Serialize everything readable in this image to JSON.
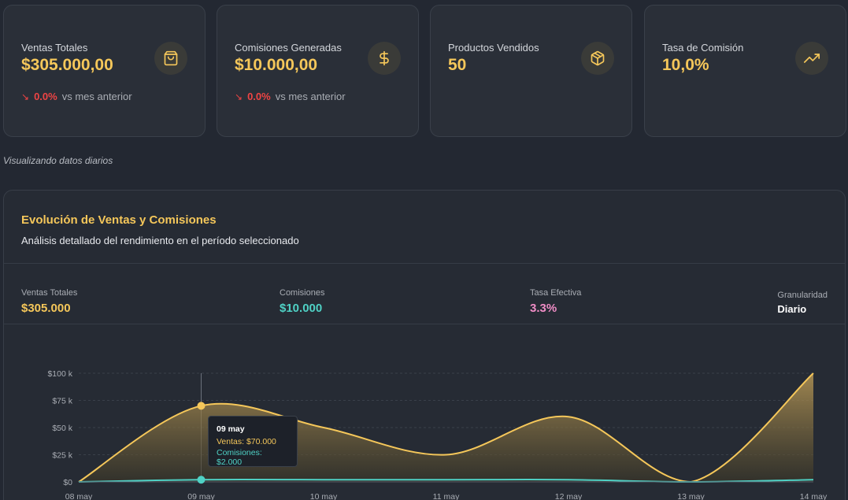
{
  "cards": [
    {
      "label": "Ventas Totales",
      "value": "$305.000,00",
      "icon": "shopping-bag-icon",
      "change": "0.0%",
      "change_text": "vs mes anterior"
    },
    {
      "label": "Comisiones Generadas",
      "value": "$10.000,00",
      "icon": "dollar-icon",
      "change": "0.0%",
      "change_text": "vs mes anterior"
    },
    {
      "label": "Productos Vendidos",
      "value": "50",
      "icon": "package-icon"
    },
    {
      "label": "Tasa de Comisión",
      "value": "10,0%",
      "icon": "trending-up-icon"
    }
  ],
  "note": "Visualizando datos diarios",
  "panel": {
    "title": "Evolución de Ventas y Comisiones",
    "description": "Análisis detallado del rendimiento en el período seleccionado",
    "stats": {
      "ventas_label": "Ventas Totales",
      "ventas_value": "$305.000",
      "comisiones_label": "Comisiones",
      "comisiones_value": "$10.000",
      "tasa_label": "Tasa Efectiva",
      "tasa_value": "3.3%",
      "gran_label": "Granularidad",
      "gran_value": "Diario"
    }
  },
  "tooltip": {
    "date": "09 may",
    "ventas": "Ventas: $70.000",
    "comisiones": "Comisiones: $2.000"
  },
  "colors": {
    "accent": "#f5c75a",
    "teal": "#4fd1c5",
    "pink": "#f08dc6",
    "negative": "#ef4444"
  },
  "chart_data": {
    "type": "area",
    "x": [
      "08 may",
      "09 may",
      "10 may",
      "11 may",
      "12 may",
      "13 may",
      "14 may"
    ],
    "y_ticks": [
      "$0",
      "$25 k",
      "$50 k",
      "$75 k",
      "$100 k"
    ],
    "ylim": [
      0,
      100000
    ],
    "series": [
      {
        "name": "Ventas",
        "values": [
          0,
          70000,
          50000,
          25000,
          60000,
          0,
          100000
        ]
      },
      {
        "name": "Comisiones",
        "values": [
          0,
          2000,
          2000,
          2000,
          2000,
          0,
          2000
        ]
      }
    ],
    "grid": true
  }
}
